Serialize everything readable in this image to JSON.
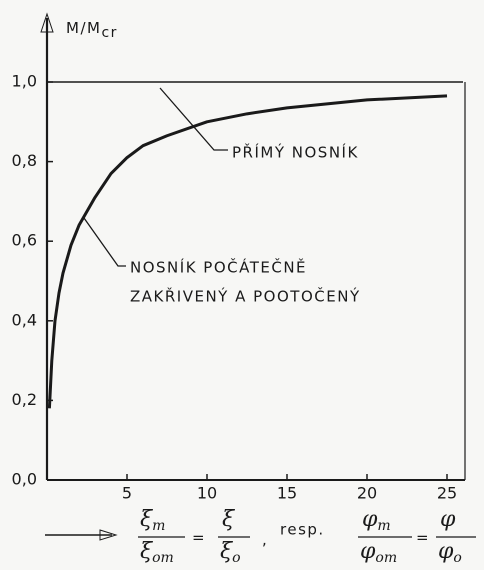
{
  "chart_data": {
    "type": "line",
    "y_label": {
      "main": "M/M",
      "sub": "cr"
    },
    "xlim": [
      0,
      26
    ],
    "ylim": [
      0,
      1
    ],
    "xticks": [
      5,
      10,
      15,
      20,
      25
    ],
    "yticks": [
      {
        "value": 0,
        "label": "0,0"
      },
      {
        "value": 0.2,
        "label": "0,2"
      },
      {
        "value": 0.4,
        "label": "0,4"
      },
      {
        "value": 0.6,
        "label": "0,6"
      },
      {
        "value": 0.8,
        "label": "0,8"
      },
      {
        "value": 1,
        "label": "1,0"
      }
    ],
    "series": [
      {
        "color": "#1a1a1a",
        "x": [
          0,
          26
        ],
        "values": [
          1,
          1
        ]
      },
      {
        "color": "#1a1a1a",
        "x": [
          0.15,
          0.3,
          0.5,
          0.75,
          1,
          1.5,
          2,
          3,
          4,
          5,
          6,
          7.5,
          10,
          12.5,
          15,
          20,
          25
        ],
        "values": [
          0.18,
          0.3,
          0.4,
          0.47,
          0.52,
          0.59,
          0.64,
          0.71,
          0.77,
          0.81,
          0.84,
          0.865,
          0.9,
          0.92,
          0.935,
          0.955,
          0.965
        ]
      }
    ],
    "annotations": [
      {
        "lines": [
          "PŘÍMÝ NOSNÍK"
        ]
      },
      {
        "lines": [
          "NOSNÍK POČÁTEČNĚ",
          "ZAKŘIVENÝ A POOTOČENÝ"
        ]
      }
    ],
    "x_label": {
      "f1": {
        "num": "ξ",
        "num_sub": "m",
        "den": "ξ",
        "den_sub": "om"
      },
      "eq1": "=",
      "f2": {
        "num": "ξ",
        "den": "ξ",
        "den_sub": "o"
      },
      "comma": ",",
      "resp": "resp.",
      "f3": {
        "num": "φ",
        "num_sub": "m",
        "den": "φ",
        "den_sub": "om"
      },
      "eq2": "=",
      "f4": {
        "num": "φ",
        "den": "φ",
        "den_sub": "o"
      }
    }
  }
}
